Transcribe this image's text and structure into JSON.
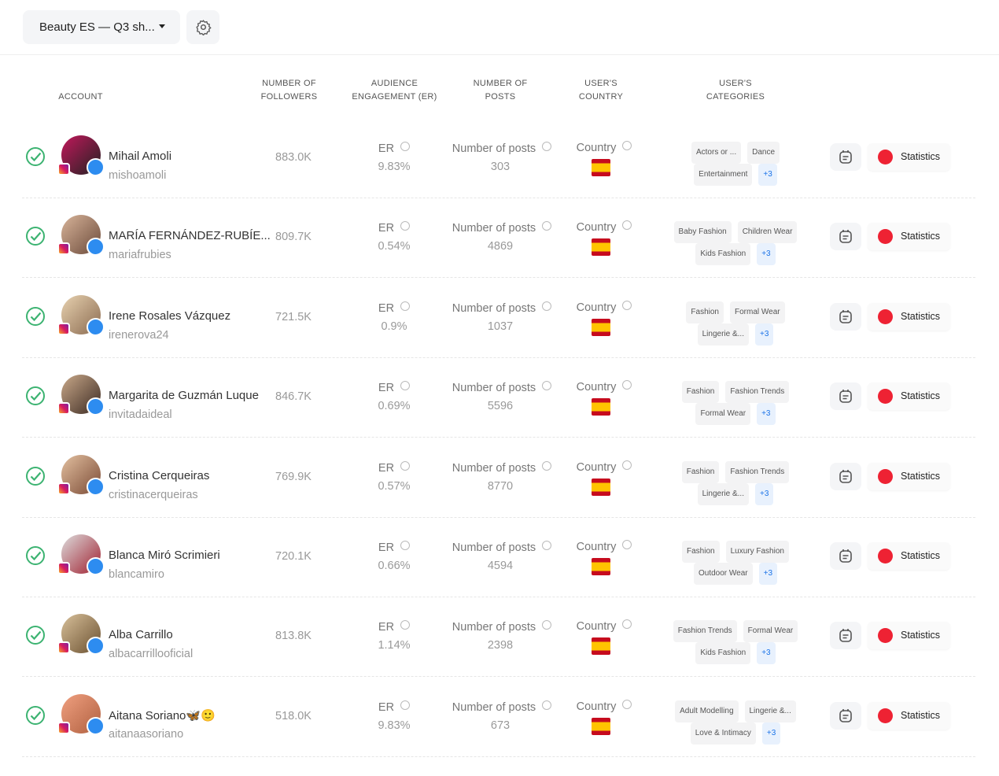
{
  "toolbar": {
    "list_name": "Beauty ES — Q3 sh..."
  },
  "table": {
    "headers": {
      "account": "ACCOUNT",
      "followers": "NUMBER OF FOLLOWERS",
      "er": "AUDIENCE ENGAGEMENT (ER)",
      "posts": "NUMBER OF POSTS",
      "country": "USER'S COUNTRY",
      "categories": "USER'S CATEGORIES"
    },
    "labels": {
      "er": "ER",
      "posts": "Number of posts",
      "country": "Country",
      "statistics": "Statistics"
    },
    "rows": [
      {
        "name": "Mihail Amoli",
        "handle": "mishoamoli",
        "followers": "883.0K",
        "er": "9.83%",
        "posts": "303",
        "categories": [
          "Actors or ...",
          "Dance",
          "Entertainment"
        ],
        "more": "+3"
      },
      {
        "name": "MARÍA FERNÁNDEZ-RUBÍE...",
        "handle": "mariafrubies",
        "followers": "809.7K",
        "er": "0.54%",
        "posts": "4869",
        "categories": [
          "Baby Fashion",
          "Children Wear",
          "Kids Fashion"
        ],
        "more": "+3"
      },
      {
        "name": "Irene Rosales Vázquez",
        "handle": "irenerova24",
        "followers": "721.5K",
        "er": "0.9%",
        "posts": "1037",
        "categories": [
          "Fashion",
          "Formal Wear",
          "Lingerie &..."
        ],
        "more": "+3"
      },
      {
        "name": "Margarita de Guzmán Luque",
        "handle": "invitadaideal",
        "followers": "846.7K",
        "er": "0.69%",
        "posts": "5596",
        "categories": [
          "Fashion",
          "Fashion Trends",
          "Formal Wear"
        ],
        "more": "+3"
      },
      {
        "name": "Cristina Cerqueiras",
        "handle": "cristinacerqueiras",
        "followers": "769.9K",
        "er": "0.57%",
        "posts": "8770",
        "categories": [
          "Fashion",
          "Fashion Trends",
          "Lingerie &..."
        ],
        "more": "+3"
      },
      {
        "name": "Blanca Miró Scrimieri",
        "handle": "blancamiro",
        "followers": "720.1K",
        "er": "0.66%",
        "posts": "4594",
        "categories": [
          "Fashion",
          "Luxury Fashion",
          "Outdoor Wear"
        ],
        "more": "+3"
      },
      {
        "name": "Alba Carrillo",
        "handle": "albacarrillooficial",
        "followers": "813.8K",
        "er": "1.14%",
        "posts": "2398",
        "categories": [
          "Fashion Trends",
          "Formal Wear",
          "Kids Fashion"
        ],
        "more": "+3"
      },
      {
        "name": "Aitana Soriano🦋🙂",
        "handle": "aitanaasoriano",
        "followers": "518.0K",
        "er": "9.83%",
        "posts": "673",
        "categories": [
          "Adult Modelling",
          "Lingerie &...",
          "Love & Intimacy"
        ],
        "more": "+3"
      }
    ]
  }
}
